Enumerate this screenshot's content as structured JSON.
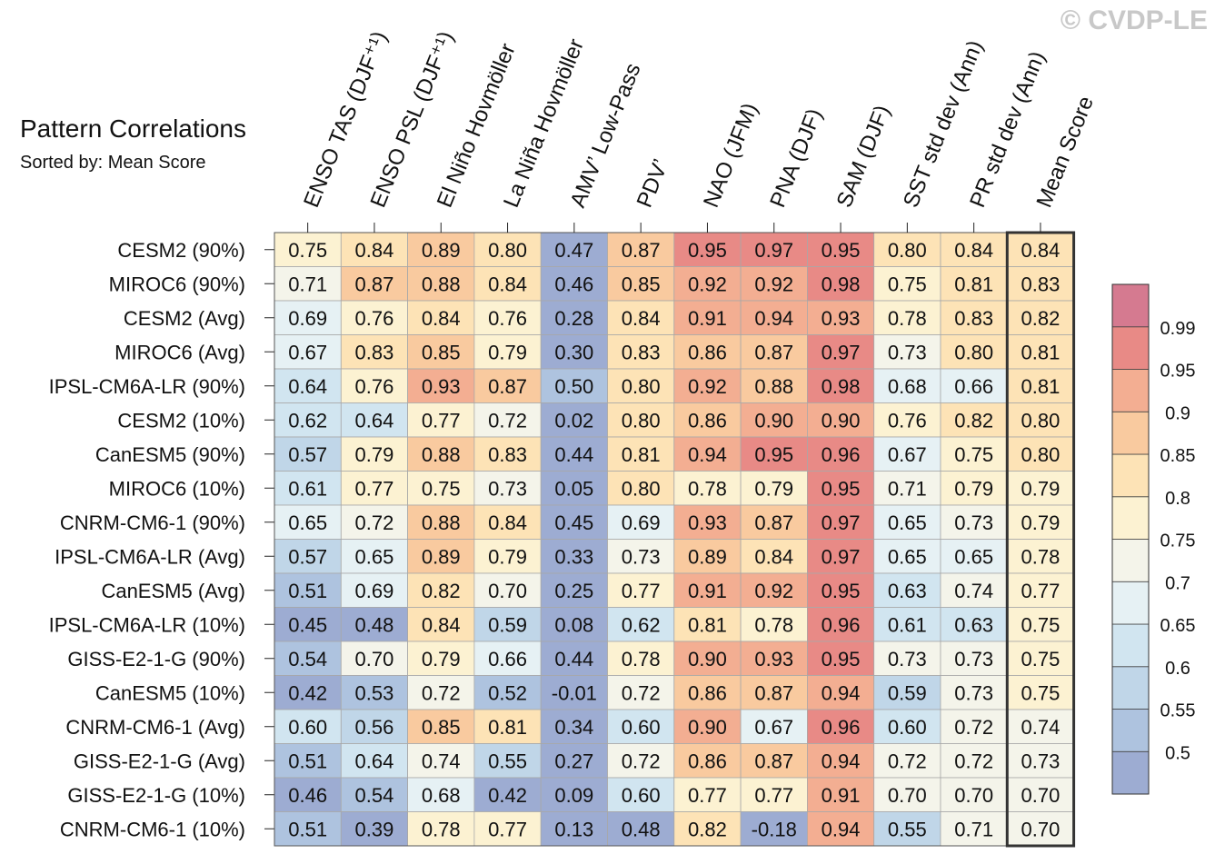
{
  "watermark": "© CVDP-LE",
  "title": "Pattern Correlations",
  "subtitle": "Sorted by: Mean Score",
  "chart_data": {
    "type": "heatmap",
    "columns": [
      "ENSO TAS (DJF⁺¹)",
      "ENSO PSL (DJF⁺¹)",
      "El Niño Hovmöller",
      "La Niña Hovmöller",
      "AMV’ Low-Pass",
      "PDV’",
      "NAO (JFM)",
      "PNA (DJF)",
      "SAM (DJF)",
      "SST std dev (Ann)",
      "PR std dev (Ann)",
      "Mean Score"
    ],
    "rows": [
      {
        "label": "CESM2 (90%)",
        "values": [
          "0.75",
          "0.84",
          "0.89",
          "0.80",
          "0.47",
          "0.87",
          "0.95",
          "0.97",
          "0.95",
          "0.80",
          "0.84",
          "0.84"
        ]
      },
      {
        "label": "MIROC6 (90%)",
        "values": [
          "0.71",
          "0.87",
          "0.88",
          "0.84",
          "0.46",
          "0.85",
          "0.92",
          "0.92",
          "0.98",
          "0.75",
          "0.81",
          "0.83"
        ]
      },
      {
        "label": "CESM2 (Avg)",
        "values": [
          "0.69",
          "0.76",
          "0.84",
          "0.76",
          "0.28",
          "0.84",
          "0.91",
          "0.94",
          "0.93",
          "0.78",
          "0.83",
          "0.82"
        ]
      },
      {
        "label": "MIROC6 (Avg)",
        "values": [
          "0.67",
          "0.83",
          "0.85",
          "0.79",
          "0.30",
          "0.83",
          "0.86",
          "0.87",
          "0.97",
          "0.73",
          "0.80",
          "0.81"
        ]
      },
      {
        "label": "IPSL-CM6A-LR (90%)",
        "values": [
          "0.64",
          "0.76",
          "0.93",
          "0.87",
          "0.50",
          "0.80",
          "0.92",
          "0.88",
          "0.98",
          "0.68",
          "0.66",
          "0.81"
        ]
      },
      {
        "label": "CESM2 (10%)",
        "values": [
          "0.62",
          "0.64",
          "0.77",
          "0.72",
          "0.02",
          "0.80",
          "0.86",
          "0.90",
          "0.90",
          "0.76",
          "0.82",
          "0.80"
        ]
      },
      {
        "label": "CanESM5 (90%)",
        "values": [
          "0.57",
          "0.79",
          "0.88",
          "0.83",
          "0.44",
          "0.81",
          "0.94",
          "0.95",
          "0.96",
          "0.67",
          "0.75",
          "0.80"
        ]
      },
      {
        "label": "MIROC6 (10%)",
        "values": [
          "0.61",
          "0.77",
          "0.75",
          "0.73",
          "0.05",
          "0.80",
          "0.78",
          "0.79",
          "0.95",
          "0.71",
          "0.79",
          "0.79"
        ]
      },
      {
        "label": "CNRM-CM6-1 (90%)",
        "values": [
          "0.65",
          "0.72",
          "0.88",
          "0.84",
          "0.45",
          "0.69",
          "0.93",
          "0.87",
          "0.97",
          "0.65",
          "0.73",
          "0.79"
        ]
      },
      {
        "label": "IPSL-CM6A-LR (Avg)",
        "values": [
          "0.57",
          "0.65",
          "0.89",
          "0.79",
          "0.33",
          "0.73",
          "0.89",
          "0.84",
          "0.97",
          "0.65",
          "0.65",
          "0.78"
        ]
      },
      {
        "label": "CanESM5 (Avg)",
        "values": [
          "0.51",
          "0.69",
          "0.82",
          "0.70",
          "0.25",
          "0.77",
          "0.91",
          "0.92",
          "0.95",
          "0.63",
          "0.74",
          "0.77"
        ]
      },
      {
        "label": "IPSL-CM6A-LR (10%)",
        "values": [
          "0.45",
          "0.48",
          "0.84",
          "0.59",
          "0.08",
          "0.62",
          "0.81",
          "0.78",
          "0.96",
          "0.61",
          "0.63",
          "0.75"
        ]
      },
      {
        "label": "GISS-E2-1-G (90%)",
        "values": [
          "0.54",
          "0.70",
          "0.79",
          "0.66",
          "0.44",
          "0.78",
          "0.90",
          "0.93",
          "0.95",
          "0.73",
          "0.73",
          "0.75"
        ]
      },
      {
        "label": "CanESM5 (10%)",
        "values": [
          "0.42",
          "0.53",
          "0.72",
          "0.52",
          "-0.01",
          "0.72",
          "0.86",
          "0.87",
          "0.94",
          "0.59",
          "0.73",
          "0.75"
        ]
      },
      {
        "label": "CNRM-CM6-1 (Avg)",
        "values": [
          "0.60",
          "0.56",
          "0.85",
          "0.81",
          "0.34",
          "0.60",
          "0.90",
          "0.67",
          "0.96",
          "0.60",
          "0.72",
          "0.74"
        ]
      },
      {
        "label": "GISS-E2-1-G (Avg)",
        "values": [
          "0.51",
          "0.64",
          "0.74",
          "0.55",
          "0.27",
          "0.72",
          "0.86",
          "0.87",
          "0.94",
          "0.72",
          "0.72",
          "0.73"
        ]
      },
      {
        "label": "GISS-E2-1-G (10%)",
        "values": [
          "0.46",
          "0.54",
          "0.68",
          "0.42",
          "0.09",
          "0.60",
          "0.77",
          "0.77",
          "0.91",
          "0.70",
          "0.70",
          "0.70"
        ]
      },
      {
        "label": "CNRM-CM6-1 (10%)",
        "values": [
          "0.51",
          "0.39",
          "0.78",
          "0.77",
          "0.13",
          "0.48",
          "0.82",
          "-0.18",
          "0.94",
          "0.55",
          "0.71",
          "0.70"
        ]
      }
    ],
    "colorbar": {
      "ticks": [
        "0.99",
        "0.95",
        "0.9",
        "0.85",
        "0.8",
        "0.75",
        "0.7",
        "0.65",
        "0.6",
        "0.55",
        "0.5"
      ],
      "levels": [
        0.5,
        0.55,
        0.6,
        0.65,
        0.7,
        0.75,
        0.8,
        0.85,
        0.9,
        0.95,
        0.99
      ],
      "colors": [
        "#9dacd2",
        "#aec3df",
        "#c0d6e8",
        "#d1e5f0",
        "#e6f1f4",
        "#f4f4ea",
        "#fcf2d2",
        "#fde3b6",
        "#f9ca9f",
        "#f3ae92",
        "#e88a86",
        "#d57a90"
      ]
    },
    "highlight_column": "Mean Score"
  }
}
